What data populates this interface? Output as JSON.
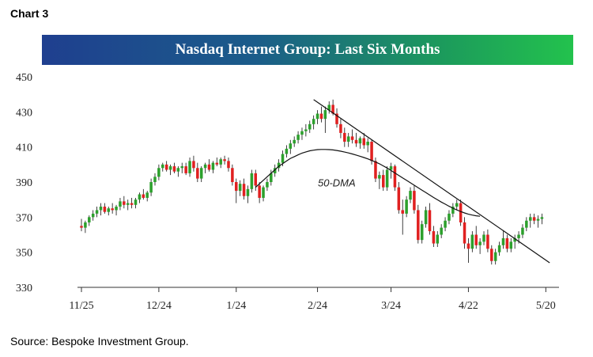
{
  "header": {
    "chart_number": "Chart 3"
  },
  "footer": {
    "source": "Source: Bespoke Investment Group."
  },
  "chart_data": {
    "type": "candlestick",
    "title": "Nasdaq Internet Group: Last Six Months",
    "xlabel": "",
    "ylabel": "",
    "ylim": [
      330,
      450
    ],
    "yticks": [
      450,
      430,
      410,
      390,
      370,
      350,
      330
    ],
    "xticks": [
      "11/25",
      "12/24",
      "1/24",
      "2/24",
      "3/24",
      "4/22",
      "5/20"
    ],
    "xtick_session_index": [
      0,
      20,
      40,
      61,
      80,
      100,
      120
    ],
    "sessions": 124,
    "grid": false,
    "up_color": "#2ca02c",
    "down_color": "#e02020",
    "annotations": [
      {
        "text": "50-DMA"
      }
    ],
    "ohlc": [
      [
        365,
        369,
        362,
        364
      ],
      [
        364,
        368,
        361,
        367
      ],
      [
        367,
        371,
        365,
        370
      ],
      [
        370,
        374,
        368,
        372
      ],
      [
        372,
        376,
        370,
        374
      ],
      [
        374,
        378,
        371,
        376
      ],
      [
        376,
        378,
        372,
        373
      ],
      [
        373,
        376,
        371,
        375
      ],
      [
        375,
        378,
        372,
        374
      ],
      [
        374,
        377,
        371,
        376
      ],
      [
        376,
        381,
        374,
        379
      ],
      [
        379,
        382,
        375,
        377
      ],
      [
        377,
        380,
        374,
        378
      ],
      [
        378,
        381,
        375,
        377
      ],
      [
        377,
        381,
        375,
        380
      ],
      [
        380,
        384,
        378,
        383
      ],
      [
        383,
        386,
        380,
        381
      ],
      [
        381,
        385,
        379,
        384
      ],
      [
        384,
        392,
        382,
        390
      ],
      [
        390,
        395,
        388,
        393
      ],
      [
        393,
        400,
        391,
        398
      ],
      [
        398,
        401,
        396,
        400
      ],
      [
        400,
        402,
        396,
        397
      ],
      [
        397,
        400,
        394,
        399
      ],
      [
        399,
        401,
        395,
        396
      ],
      [
        396,
        399,
        393,
        398
      ],
      [
        398,
        401,
        395,
        399
      ],
      [
        399,
        401,
        394,
        395
      ],
      [
        395,
        404,
        393,
        402
      ],
      [
        402,
        405,
        396,
        398
      ],
      [
        398,
        401,
        390,
        392
      ],
      [
        392,
        399,
        390,
        398
      ],
      [
        398,
        401,
        395,
        400
      ],
      [
        400,
        403,
        396,
        397
      ],
      [
        397,
        402,
        395,
        401
      ],
      [
        401,
        404,
        399,
        400
      ],
      [
        400,
        404,
        398,
        403
      ],
      [
        403,
        405,
        400,
        402
      ],
      [
        402,
        404,
        396,
        398
      ],
      [
        398,
        400,
        388,
        390
      ],
      [
        390,
        392,
        378,
        385
      ],
      [
        385,
        391,
        382,
        389
      ],
      [
        389,
        392,
        380,
        382
      ],
      [
        382,
        388,
        378,
        386
      ],
      [
        386,
        397,
        384,
        395
      ],
      [
        395,
        397,
        385,
        388
      ],
      [
        388,
        390,
        378,
        381
      ],
      [
        381,
        388,
        379,
        387
      ],
      [
        387,
        392,
        385,
        390
      ],
      [
        390,
        397,
        388,
        395
      ],
      [
        395,
        400,
        393,
        398
      ],
      [
        398,
        403,
        396,
        401
      ],
      [
        401,
        408,
        399,
        406
      ],
      [
        406,
        411,
        404,
        409
      ],
      [
        409,
        414,
        406,
        412
      ],
      [
        412,
        416,
        410,
        414
      ],
      [
        414,
        419,
        412,
        417
      ],
      [
        417,
        421,
        414,
        419
      ],
      [
        419,
        423,
        416,
        420
      ],
      [
        420,
        425,
        418,
        423
      ],
      [
        423,
        428,
        420,
        426
      ],
      [
        426,
        431,
        423,
        429
      ],
      [
        429,
        433,
        424,
        426
      ],
      [
        426,
        433,
        418,
        431
      ],
      [
        431,
        436,
        429,
        434
      ],
      [
        434,
        437,
        428,
        429
      ],
      [
        429,
        432,
        421,
        423
      ],
      [
        423,
        426,
        415,
        418
      ],
      [
        418,
        421,
        410,
        413
      ],
      [
        413,
        418,
        410,
        416
      ],
      [
        416,
        420,
        412,
        414
      ],
      [
        414,
        418,
        410,
        412
      ],
      [
        412,
        416,
        409,
        415
      ],
      [
        415,
        418,
        409,
        411
      ],
      [
        411,
        415,
        407,
        413
      ],
      [
        413,
        414,
        400,
        402
      ],
      [
        402,
        404,
        390,
        392
      ],
      [
        392,
        396,
        386,
        394
      ],
      [
        394,
        397,
        385,
        387
      ],
      [
        387,
        399,
        385,
        397
      ],
      [
        397,
        401,
        392,
        399
      ],
      [
        399,
        400,
        385,
        387
      ],
      [
        387,
        390,
        372,
        374
      ],
      [
        374,
        380,
        360,
        372
      ],
      [
        372,
        382,
        370,
        380
      ],
      [
        380,
        387,
        378,
        385
      ],
      [
        385,
        388,
        372,
        374
      ],
      [
        374,
        377,
        355,
        357
      ],
      [
        357,
        368,
        355,
        366
      ],
      [
        366,
        376,
        364,
        374
      ],
      [
        374,
        378,
        360,
        362
      ],
      [
        362,
        365,
        353,
        355
      ],
      [
        355,
        362,
        353,
        360
      ],
      [
        360,
        366,
        358,
        364
      ],
      [
        364,
        370,
        362,
        368
      ],
      [
        368,
        374,
        366,
        372
      ],
      [
        372,
        378,
        370,
        376
      ],
      [
        376,
        380,
        374,
        378
      ],
      [
        378,
        380,
        365,
        367
      ],
      [
        367,
        370,
        352,
        355
      ],
      [
        355,
        358,
        344,
        352
      ],
      [
        352,
        362,
        350,
        360
      ],
      [
        360,
        365,
        352,
        354
      ],
      [
        354,
        358,
        349,
        356
      ],
      [
        356,
        362,
        354,
        360
      ],
      [
        360,
        363,
        350,
        352
      ],
      [
        352,
        354,
        343,
        345
      ],
      [
        345,
        352,
        343,
        350
      ],
      [
        350,
        356,
        348,
        354
      ],
      [
        354,
        362,
        352,
        358
      ],
      [
        358,
        360,
        350,
        352
      ],
      [
        352,
        358,
        350,
        356
      ],
      [
        356,
        360,
        352,
        358
      ],
      [
        358,
        362,
        355,
        360
      ],
      [
        360,
        366,
        358,
        364
      ],
      [
        364,
        370,
        362,
        368
      ],
      [
        368,
        372,
        364,
        370
      ],
      [
        370,
        372,
        366,
        368
      ],
      [
        368,
        371,
        364,
        369
      ],
      [
        369,
        372,
        366,
        370
      ]
    ],
    "moving_average": {
      "name": "50-DMA",
      "start_session": 45,
      "values": [
        387,
        389,
        391,
        393,
        395,
        397,
        399,
        400.5,
        402,
        403.5,
        404.5,
        405.5,
        406.5,
        407.2,
        407.8,
        408.2,
        408.5,
        408.6,
        408.6,
        408.5,
        408.3,
        408,
        407.6,
        407.1,
        406.6,
        406,
        405.4,
        404.7,
        404,
        403.2,
        402.3,
        401.4,
        400.4,
        399.2,
        398,
        396.6,
        395.2,
        393.8,
        392.4,
        391,
        389.6,
        388.2,
        386.8,
        385.4,
        384,
        382.6,
        381.2,
        379.9,
        378.6,
        377.4,
        376.2,
        375.1,
        374.1,
        373.2,
        372.4,
        371.7,
        371.2,
        370.8,
        370.5
      ]
    },
    "trend_line": {
      "points": [
        [
          60,
          437
        ],
        [
          121,
          344
        ]
      ]
    }
  }
}
